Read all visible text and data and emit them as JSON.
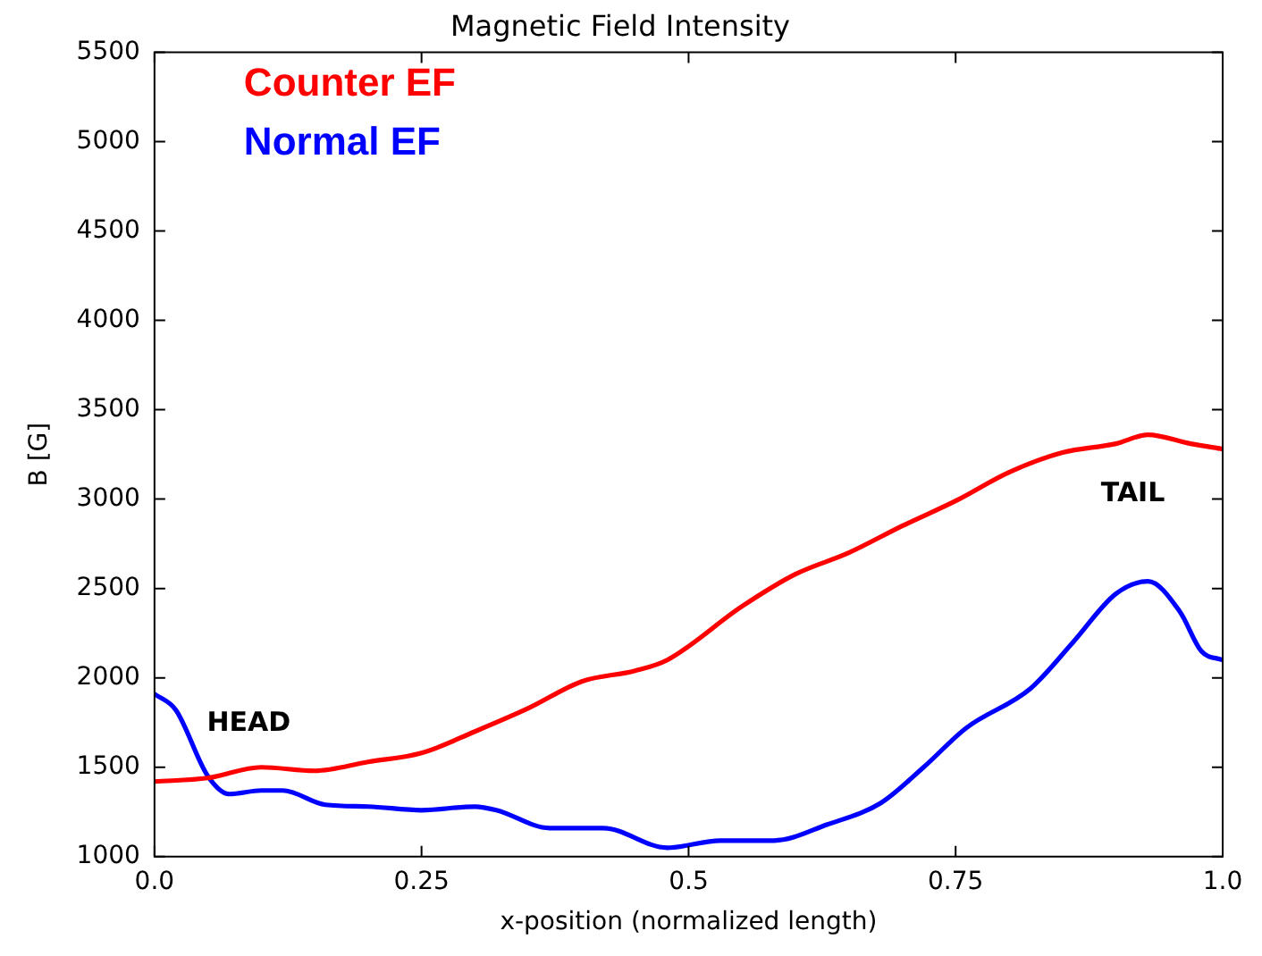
{
  "chart_data": {
    "type": "line",
    "title": "Magnetic Field Intensity",
    "xlabel": "x-position (normalized length)",
    "ylabel": "B [G]",
    "xlim": [
      0,
      1
    ],
    "xticks": [
      {
        "value": 0,
        "label": "0.0"
      },
      0.25,
      0.5,
      0.75,
      {
        "value": 1,
        "label": "1.0"
      }
    ],
    "ylim": [
      1000,
      5500
    ],
    "yticks": [
      1000,
      1500,
      2000,
      2500,
      3000,
      3500,
      4000,
      4500,
      5000,
      5500
    ],
    "grid": false,
    "legend": "top left",
    "marker": "none",
    "line_style": "solid",
    "annotations": [
      "HEAD",
      "TAIL"
    ],
    "series": [
      {
        "name": "Counter EF",
        "color": "#ff0000",
        "x": [
          0,
          0.05,
          0.1,
          0.15,
          0.2,
          0.25,
          0.3,
          0.35,
          0.4,
          0.45,
          0.48,
          0.55,
          0.6,
          0.65,
          0.7,
          0.75,
          0.8,
          0.85,
          0.9,
          0.93,
          0.97,
          1.0
        ],
        "values": [
          1420,
          1440,
          1500,
          1480,
          1530,
          1580,
          1700,
          1830,
          1980,
          2040,
          2100,
          2400,
          2580,
          2700,
          2850,
          2990,
          3150,
          3260,
          3310,
          3360,
          3310,
          3280
        ]
      },
      {
        "name": "Normal EF",
        "color": "#0000ff",
        "x": [
          0,
          0.02,
          0.05,
          0.07,
          0.1,
          0.12,
          0.16,
          0.2,
          0.25,
          0.3,
          0.32,
          0.37,
          0.42,
          0.48,
          0.53,
          0.58,
          0.63,
          0.68,
          0.72,
          0.76,
          0.82,
          0.86,
          0.9,
          0.93,
          0.96,
          0.98,
          1.0
        ],
        "values": [
          1910,
          1820,
          1450,
          1350,
          1370,
          1370,
          1290,
          1280,
          1260,
          1280,
          1260,
          1160,
          1160,
          1050,
          1090,
          1090,
          1180,
          1300,
          1500,
          1720,
          1940,
          2200,
          2470,
          2540,
          2370,
          2150,
          2100
        ]
      }
    ]
  }
}
